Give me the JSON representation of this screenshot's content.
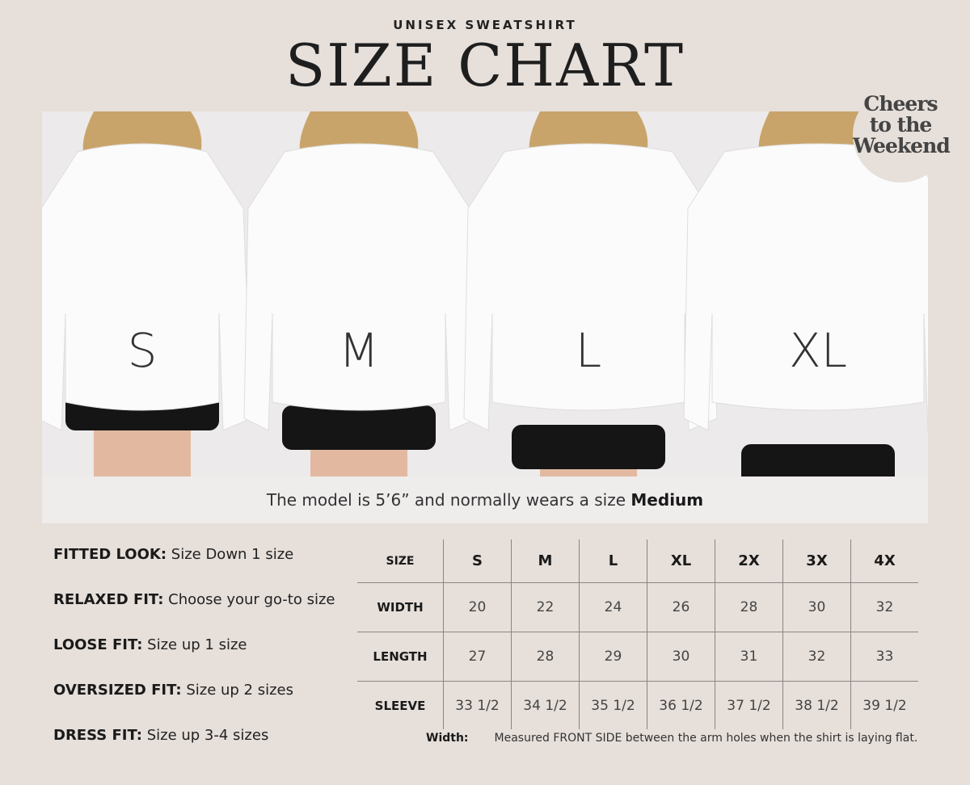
{
  "header": {
    "subtitle": "UNISEX SWEATSHIRT",
    "title": "SIZE CHART"
  },
  "badge": {
    "line1": "Cheers",
    "line2": "to the",
    "line3": "Weekend"
  },
  "photo": {
    "size_labels": [
      "S",
      "M",
      "L",
      "XL"
    ]
  },
  "caption": {
    "text": "The model is 5’6” and normally wears a size ",
    "bold": "Medium"
  },
  "fits": [
    {
      "label": "FITTED LOOK:",
      "text": " Size Down 1 size"
    },
    {
      "label": "RELAXED FIT:",
      "text": " Choose your go-to size"
    },
    {
      "label": "LOOSE FIT:",
      "text": " Size up 1 size"
    },
    {
      "label": "OVERSIZED FIT:",
      "text": " Size up 2 sizes"
    },
    {
      "label": "DRESS FIT:",
      "text": " Size up 3-4 sizes"
    }
  ],
  "table": {
    "header": [
      "SIZE",
      "S",
      "M",
      "L",
      "XL",
      "2X",
      "3X",
      "4X"
    ],
    "rows": [
      [
        "WIDTH",
        "20",
        "22",
        "24",
        "26",
        "28",
        "30",
        "32"
      ],
      [
        "LENGTH",
        "27",
        "28",
        "29",
        "30",
        "31",
        "32",
        "33"
      ],
      [
        "SLEEVE",
        "33 1/2",
        "34 1/2",
        "35 1/2",
        "36 1/2",
        "37 1/2",
        "38 1/2",
        "39 1/2"
      ]
    ]
  },
  "note": {
    "label": "Width:",
    "text": "Measured FRONT SIDE between the arm holes when the shirt is laying flat."
  },
  "colors": {
    "background": "#e6dfda",
    "photo_bg": "#eceaea",
    "text": "#222222"
  }
}
